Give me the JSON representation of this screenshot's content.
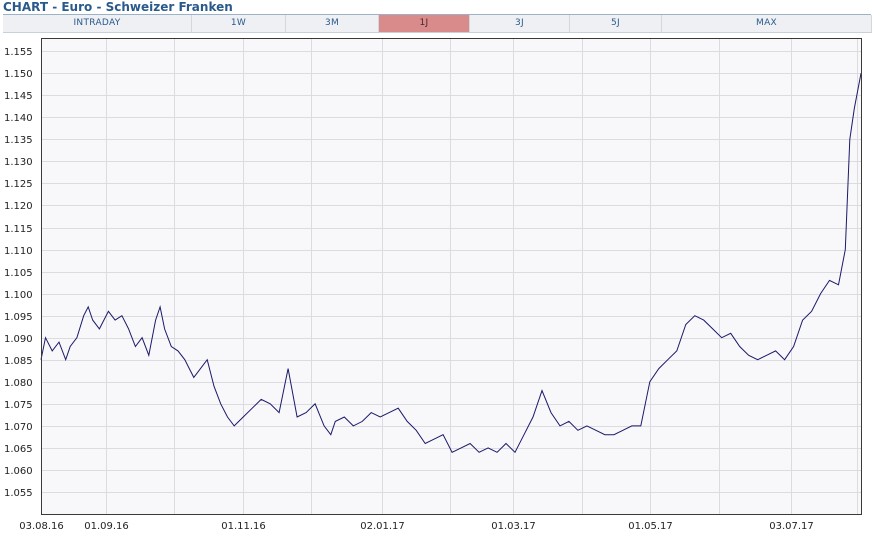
{
  "header": {
    "title": "CHART - Euro - Schweizer Franken"
  },
  "tabs": [
    {
      "label": "INTRADAY",
      "active": false
    },
    {
      "label": "1W",
      "active": false
    },
    {
      "label": "3M",
      "active": false
    },
    {
      "label": "1J",
      "active": true
    },
    {
      "label": "3J",
      "active": false
    },
    {
      "label": "5J",
      "active": false
    },
    {
      "label": "MAX",
      "active": false
    }
  ],
  "colors": {
    "line": "#1a1a6a",
    "plot_bg": "#f8f7fa",
    "grid": "#dcdbe0",
    "active_tab": "#d98a8a",
    "title": "#2a5a8c"
  },
  "chart_data": {
    "type": "line",
    "title": "",
    "xlabel": "",
    "ylabel": "",
    "ylim": [
      1.05,
      1.158
    ],
    "xlim": [
      "2016-08-03",
      "2017-08-03"
    ],
    "grid": true,
    "y_ticks": [
      "1.055",
      "1.060",
      "1.065",
      "1.070",
      "1.075",
      "1.080",
      "1.085",
      "1.090",
      "1.095",
      "1.100",
      "1.105",
      "1.110",
      "1.115",
      "1.120",
      "1.125",
      "1.130",
      "1.135",
      "1.140",
      "1.145",
      "1.150",
      "1.155"
    ],
    "x_ticks": [
      {
        "date": "2016-08-03",
        "label": "03.08.16"
      },
      {
        "date": "2016-09-01",
        "label": "01.09.16"
      },
      {
        "date": "2016-11-01",
        "label": "01.11.16"
      },
      {
        "date": "2017-01-02",
        "label": "02.01.17"
      },
      {
        "date": "2017-03-01",
        "label": "01.03.17"
      },
      {
        "date": "2017-05-01",
        "label": "01.05.17"
      },
      {
        "date": "2017-07-03",
        "label": "03.07.17"
      }
    ],
    "series": [
      {
        "x": [
          "2016-08-03",
          "2016-08-05",
          "2016-08-08",
          "2016-08-11",
          "2016-08-14",
          "2016-08-16",
          "2016-08-19",
          "2016-08-22",
          "2016-08-24",
          "2016-08-26",
          "2016-08-29",
          "2016-09-02",
          "2016-09-05",
          "2016-09-08",
          "2016-09-11",
          "2016-09-14",
          "2016-09-17",
          "2016-09-20",
          "2016-09-23",
          "2016-09-25",
          "2016-09-27",
          "2016-09-30",
          "2016-10-03",
          "2016-10-06",
          "2016-10-08",
          "2016-10-10",
          "2016-10-13",
          "2016-10-16",
          "2016-10-19",
          "2016-10-22",
          "2016-10-25",
          "2016-10-28",
          "2016-11-01",
          "2016-11-05",
          "2016-11-09",
          "2016-11-13",
          "2016-11-17",
          "2016-11-21",
          "2016-11-25",
          "2016-11-29",
          "2016-12-03",
          "2016-12-07",
          "2016-12-10",
          "2016-12-12",
          "2016-12-16",
          "2016-12-20",
          "2016-12-24",
          "2016-12-28",
          "2017-01-01",
          "2017-01-05",
          "2017-01-09",
          "2017-01-13",
          "2017-01-17",
          "2017-01-21",
          "2017-01-25",
          "2017-01-29",
          "2017-02-02",
          "2017-02-06",
          "2017-02-10",
          "2017-02-14",
          "2017-02-18",
          "2017-02-22",
          "2017-02-26",
          "2017-03-02",
          "2017-03-06",
          "2017-03-10",
          "2017-03-14",
          "2017-03-18",
          "2017-03-22",
          "2017-03-26",
          "2017-03-30",
          "2017-04-03",
          "2017-04-07",
          "2017-04-11",
          "2017-04-15",
          "2017-04-19",
          "2017-04-23",
          "2017-04-27",
          "2017-05-01",
          "2017-05-05",
          "2017-05-09",
          "2017-05-13",
          "2017-05-17",
          "2017-05-21",
          "2017-05-25",
          "2017-05-29",
          "2017-06-02",
          "2017-06-06",
          "2017-06-10",
          "2017-06-14",
          "2017-06-18",
          "2017-06-22",
          "2017-06-26",
          "2017-06-30",
          "2017-07-04",
          "2017-07-08",
          "2017-07-12",
          "2017-07-16",
          "2017-07-20",
          "2017-07-24",
          "2017-07-27",
          "2017-07-29",
          "2017-07-31",
          "2017-08-03"
        ],
        "values": [
          1.085,
          1.09,
          1.087,
          1.089,
          1.085,
          1.088,
          1.09,
          1.095,
          1.097,
          1.094,
          1.092,
          1.096,
          1.094,
          1.095,
          1.092,
          1.088,
          1.09,
          1.086,
          1.094,
          1.097,
          1.092,
          1.088,
          1.087,
          1.085,
          1.083,
          1.081,
          1.083,
          1.085,
          1.079,
          1.075,
          1.072,
          1.07,
          1.072,
          1.074,
          1.076,
          1.075,
          1.073,
          1.083,
          1.072,
          1.073,
          1.075,
          1.07,
          1.068,
          1.071,
          1.072,
          1.07,
          1.071,
          1.073,
          1.072,
          1.073,
          1.074,
          1.071,
          1.069,
          1.066,
          1.067,
          1.068,
          1.064,
          1.065,
          1.066,
          1.064,
          1.065,
          1.064,
          1.066,
          1.064,
          1.068,
          1.072,
          1.078,
          1.073,
          1.07,
          1.071,
          1.069,
          1.07,
          1.069,
          1.068,
          1.068,
          1.069,
          1.07,
          1.07,
          1.08,
          1.083,
          1.085,
          1.087,
          1.093,
          1.095,
          1.094,
          1.092,
          1.09,
          1.091,
          1.088,
          1.086,
          1.085,
          1.086,
          1.087,
          1.085,
          1.088,
          1.094,
          1.096,
          1.1,
          1.103,
          1.102,
          1.11,
          1.135,
          1.142,
          1.15
        ]
      }
    ]
  }
}
